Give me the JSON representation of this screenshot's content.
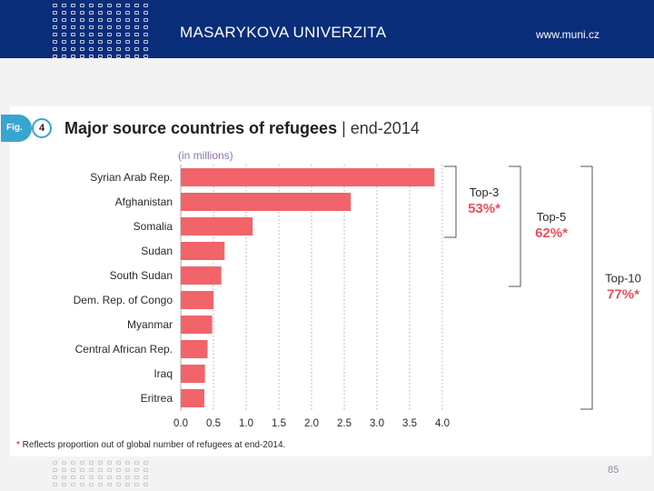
{
  "header": {
    "university": "MASARYKOVA UNIVERZITA",
    "website": "www.muni.cz",
    "background": "#0a2d7a"
  },
  "figure": {
    "fig_label": "Fig.",
    "fig_number": "4",
    "title_bold": "Major source countries of refugees",
    "title_sep": " | ",
    "title_rest": "end-2014",
    "unit_note": "(in millions)",
    "footnote_star": "*",
    "footnote_text": " Reflects proportion out of global number of refugees at end-2014."
  },
  "chart_data": {
    "type": "bar",
    "orientation": "horizontal",
    "categories": [
      "Syrian Arab Rep.",
      "Afghanistan",
      "Somalia",
      "Sudan",
      "South Sudan",
      "Dem. Rep. of Congo",
      "Myanmar",
      "Central African Rep.",
      "Iraq",
      "Eritrea"
    ],
    "values": [
      3.88,
      2.6,
      1.1,
      0.67,
      0.62,
      0.5,
      0.48,
      0.41,
      0.37,
      0.36
    ],
    "xlim": [
      0,
      4.0
    ],
    "xticks": [
      "0.0",
      "0.5",
      "1.0",
      "1.5",
      "2.0",
      "2.5",
      "3.0",
      "3.5",
      "4.0"
    ],
    "grid": "vertical dotted",
    "bar_color": "#f1646a",
    "brackets": [
      {
        "label": "Top-3",
        "value": "53%*",
        "from": 0,
        "to": 2
      },
      {
        "label": "Top-5",
        "value": "62%*",
        "from": 0,
        "to": 4
      },
      {
        "label": "Top-10",
        "value": "77%*",
        "from": 0,
        "to": 9
      }
    ]
  },
  "footer": {
    "page_number": "85"
  }
}
